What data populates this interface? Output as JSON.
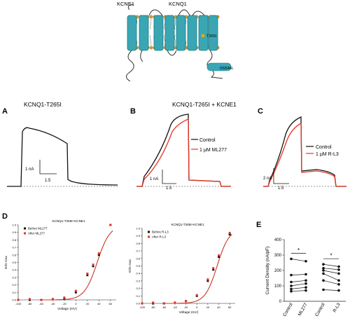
{
  "topology": {
    "kcne1_label": "KCNE1",
    "kcnq1_label": "KCNQ1",
    "t265i_label": "T265I",
    "s546l_label": "S546L",
    "helix_color": "#3aa6b3",
    "lipid_head_color": "#e09a2a",
    "t265i_marker_color": "#f0a500",
    "s546l_marker_color": "#2a6fb0"
  },
  "panels": {
    "A": {
      "letter": "A",
      "title": "KCNQ1-T265I",
      "scale_y": "1 nA",
      "scale_x": "1.5"
    },
    "B": {
      "letter": "B",
      "title": "KCNQ1-T265I + KCNE1",
      "scale_y": "1 nA",
      "scale_x": "1.5",
      "legend": [
        "Control",
        "1 μM ML277"
      ]
    },
    "C": {
      "letter": "C",
      "scale_y": "2 nA",
      "scale_x": "1.5",
      "legend": [
        "Control",
        "1 μM R-L3"
      ]
    },
    "D": {
      "letter": "D"
    },
    "E": {
      "letter": "E"
    }
  },
  "colors": {
    "control": "#111111",
    "drug": "#e53424",
    "baseline": "#777777"
  },
  "chart_data": [
    {
      "type": "scatter",
      "title": "KCNQ1-T265I+KCNE1",
      "xlabel": "Voltage (mV)",
      "ylabel": "G/G max",
      "xlim": [
        -100,
        70
      ],
      "ylim": [
        0,
        1
      ],
      "xticks": [
        "-100",
        "-80",
        "-60",
        "-40",
        "-20",
        "0",
        "20",
        "40",
        "60"
      ],
      "yticks": [
        "0.0",
        "0.1",
        "0.2",
        "0.3",
        "0.4",
        "0.5",
        "0.6",
        "0.7",
        "0.8",
        "0.9",
        "1.0"
      ],
      "legend": "top-left",
      "x": [
        -100,
        -80,
        -60,
        -40,
        -20,
        0,
        20,
        30,
        40,
        60
      ],
      "series": [
        {
          "name": "Before ML277",
          "values": [
            0.0,
            0.0,
            0.0,
            0.01,
            0.02,
            0.1,
            0.33,
            0.45,
            0.6,
            1.0
          ]
        },
        {
          "name": "After ML277",
          "values": [
            0.0,
            0.01,
            0.0,
            0.01,
            0.03,
            0.12,
            0.35,
            0.47,
            0.62,
            1.0
          ]
        }
      ]
    },
    {
      "type": "scatter",
      "title": "KCNQ1-T265I+KCNE1",
      "xlabel": "Voltage (mV)",
      "ylabel": "G/G max",
      "xlim": [
        -100,
        70
      ],
      "ylim": [
        0,
        1
      ],
      "xticks": [
        "-100",
        "-80",
        "-60",
        "-40",
        "-20",
        "0",
        "20",
        "40",
        "60"
      ],
      "yticks": [
        "0.0",
        "0.1",
        "0.2",
        "0.3",
        "0.4",
        "0.5",
        "0.6",
        "0.7",
        "0.8",
        "0.9",
        "1.0"
      ],
      "legend": "top-left",
      "x": [
        -100,
        -80,
        -60,
        -40,
        -20,
        0,
        20,
        30,
        40,
        60
      ],
      "series": [
        {
          "name": "Before R-L3",
          "values": [
            0.0,
            0.0,
            0.0,
            0.01,
            0.03,
            0.1,
            0.3,
            0.45,
            0.62,
            0.92
          ]
        },
        {
          "name": "After R-L3",
          "values": [
            0.0,
            0.01,
            0.0,
            0.01,
            0.03,
            0.11,
            0.32,
            0.47,
            0.64,
            0.94
          ]
        }
      ]
    },
    {
      "type": "scatter",
      "ylabel": "Current Density (nA/pF)",
      "ylim": [
        0,
        400
      ],
      "yticks": [
        "0",
        "100",
        "200",
        "300",
        "400"
      ],
      "categories": [
        "Control",
        "ML277",
        "Control",
        "R-L3"
      ],
      "significance": [
        "*",
        "*"
      ],
      "pairs": [
        {
          "name": "ML277",
          "before": [
            275,
            170,
            125,
            100,
            80,
            65
          ],
          "after": [
            260,
            175,
            135,
            115,
            90,
            70
          ]
        },
        {
          "name": "R-L3",
          "before": [
            240,
            215,
            200,
            180,
            135,
            75
          ],
          "after": [
            225,
            205,
            180,
            135,
            110,
            70
          ]
        }
      ]
    }
  ]
}
